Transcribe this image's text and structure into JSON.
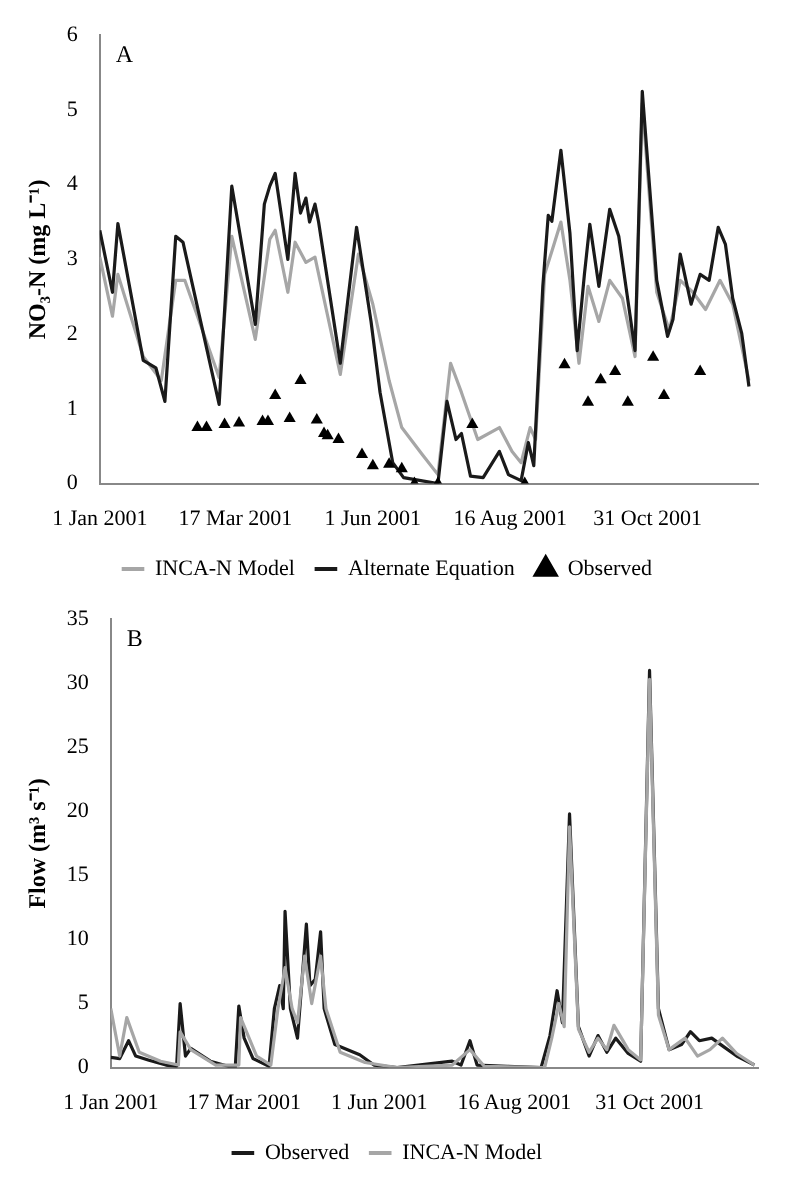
{
  "chart_data": [
    {
      "type": "line",
      "annotations": [
        "A"
      ],
      "ylabel": "NO₃-N (mg L⁻¹)",
      "xlim": [
        "2001-01-01",
        "2001-12-31"
      ],
      "xticks": [
        {
          "value": "2001-01-01",
          "label": "1 Jan 2001"
        },
        {
          "value": "2001-03-17",
          "label": "17 Mar 2001"
        },
        {
          "value": "2001-06-01",
          "label": "1 Jun 2001"
        },
        {
          "value": "2001-08-16",
          "label": "16 Aug 2001"
        },
        {
          "value": "2001-10-31",
          "label": "31 Oct 2001"
        }
      ],
      "ylim": [
        0,
        6
      ],
      "yticks": [
        0,
        1,
        2,
        3,
        4,
        5,
        6
      ],
      "grid": false,
      "legend": "bottom",
      "series": [
        {
          "name": "INCA-N Model",
          "color": "#a6a6a6",
          "marker": "none",
          "x": [
            "2001-01-01",
            "2001-01-08",
            "2001-01-11",
            "2001-01-25",
            "2001-02-04",
            "2001-02-12",
            "2001-02-17",
            "2001-03-08",
            "2001-03-15",
            "2001-03-28",
            "2001-04-05",
            "2001-04-08",
            "2001-04-15",
            "2001-04-19",
            "2001-04-25",
            "2001-04-30",
            "2001-05-14",
            "2001-05-24",
            "2001-06-01",
            "2001-06-10",
            "2001-06-17",
            "2001-06-28",
            "2001-07-07",
            "2001-07-14",
            "2001-07-20",
            "2001-07-29",
            "2001-08-10",
            "2001-08-17",
            "2001-08-22",
            "2001-08-27",
            "2001-08-30",
            "2001-09-04",
            "2001-09-08",
            "2001-09-13",
            "2001-09-18",
            "2001-09-23",
            "2001-09-28",
            "2001-10-04",
            "2001-10-10",
            "2001-10-17",
            "2001-10-24",
            "2001-10-28",
            "2001-11-05",
            "2001-11-12",
            "2001-11-18",
            "2001-11-25",
            "2001-12-02",
            "2001-12-10",
            "2001-12-17",
            "2001-12-26"
          ],
          "values": [
            3.03,
            2.24,
            2.8,
            1.7,
            1.38,
            2.72,
            2.72,
            1.42,
            3.31,
            1.93,
            3.27,
            3.39,
            2.56,
            3.23,
            2.96,
            3.03,
            1.46,
            3.07,
            2.4,
            1.38,
            0.75,
            0.4,
            0.12,
            1.61,
            1.22,
            0.59,
            0.75,
            0.43,
            0.28,
            0.75,
            0.59,
            2.8,
            3.11,
            3.5,
            2.72,
            1.61,
            2.64,
            2.17,
            2.72,
            2.48,
            1.7,
            5.09,
            2.56,
            2.05,
            2.72,
            2.56,
            2.33,
            2.72,
            2.4,
            1.38
          ]
        },
        {
          "name": "Alternate Equation",
          "color": "#1a1a1a",
          "marker": "none",
          "x": [
            "2001-01-01",
            "2001-01-08",
            "2001-01-11",
            "2001-01-25",
            "2001-02-01",
            "2001-02-06",
            "2001-02-12",
            "2001-02-16",
            "2001-03-08",
            "2001-03-15",
            "2001-03-28",
            "2001-04-02",
            "2001-04-05",
            "2001-04-08",
            "2001-04-15",
            "2001-04-19",
            "2001-04-22",
            "2001-04-25",
            "2001-04-27",
            "2001-04-30",
            "2001-05-02",
            "2001-05-14",
            "2001-05-23",
            "2001-05-31",
            "2001-06-05",
            "2001-06-12",
            "2001-06-18",
            "2001-07-07",
            "2001-07-12",
            "2001-07-17",
            "2001-07-20",
            "2001-07-25",
            "2001-08-01",
            "2001-08-10",
            "2001-08-15",
            "2001-08-22",
            "2001-08-26",
            "2001-08-29",
            "2001-09-03",
            "2001-09-06",
            "2001-09-08",
            "2001-09-13",
            "2001-09-18",
            "2001-09-22",
            "2001-09-26",
            "2001-09-29",
            "2001-10-04",
            "2001-10-10",
            "2001-10-15",
            "2001-10-24",
            "2001-10-28",
            "2001-11-05",
            "2001-11-11",
            "2001-11-14",
            "2001-11-18",
            "2001-11-24",
            "2001-11-29",
            "2001-12-04",
            "2001-12-09",
            "2001-12-13",
            "2001-12-17",
            "2001-12-22",
            "2001-12-26"
          ],
          "values": [
            3.39,
            2.56,
            3.48,
            1.65,
            1.55,
            1.1,
            3.31,
            3.23,
            1.06,
            3.98,
            2.13,
            3.74,
            3.98,
            4.15,
            3.0,
            4.15,
            3.62,
            3.82,
            3.5,
            3.74,
            3.5,
            1.61,
            3.43,
            2.17,
            1.22,
            0.28,
            0.08,
            0,
            1.1,
            0.59,
            0.67,
            0.1,
            0.08,
            0.43,
            0.12,
            0.04,
            0.55,
            0.24,
            2.64,
            3.59,
            3.51,
            4.46,
            3.35,
            1.78,
            2.8,
            3.47,
            2.64,
            3.67,
            3.31,
            1.78,
            5.25,
            2.72,
            1.97,
            2.2,
            3.07,
            2.4,
            2.8,
            2.72,
            3.43,
            3.2,
            2.48,
            2.01,
            1.3
          ]
        },
        {
          "name": "Observed",
          "type": "scatter",
          "color": "#000000",
          "marker": "triangle",
          "x": [
            "2001-02-24",
            "2001-03-01",
            "2001-03-11",
            "2001-03-19",
            "2001-04-01",
            "2001-04-04",
            "2001-04-08",
            "2001-04-16",
            "2001-04-22",
            "2001-05-01",
            "2001-05-05",
            "2001-05-07",
            "2001-05-13",
            "2001-05-26",
            "2001-06-01",
            "2001-06-10",
            "2001-06-17",
            "2001-06-24",
            "2001-07-07",
            "2001-07-26",
            "2001-08-24",
            "2001-09-15",
            "2001-09-28",
            "2001-10-05",
            "2001-10-13",
            "2001-10-20",
            "2001-11-03",
            "2001-11-09",
            "2001-11-29"
          ],
          "values": [
            0.75,
            0.75,
            0.79,
            0.81,
            0.83,
            0.83,
            1.18,
            0.87,
            1.38,
            0.85,
            0.67,
            0.64,
            0.59,
            0.39,
            0.24,
            0.26,
            0.2,
            0,
            0,
            0.79,
            0,
            1.59,
            1.09,
            1.39,
            1.5,
            1.09,
            1.69,
            1.18,
            1.5
          ]
        }
      ]
    },
    {
      "type": "line",
      "annotations": [
        "B"
      ],
      "ylabel": "Flow (m³ s⁻¹)",
      "xlim": [
        "2001-01-01",
        "2001-12-31"
      ],
      "xticks": [
        {
          "value": "2001-01-01",
          "label": "1 Jan 2001"
        },
        {
          "value": "2001-03-17",
          "label": "17 Mar 2001"
        },
        {
          "value": "2001-06-01",
          "label": "1 Jun 2001"
        },
        {
          "value": "2001-08-16",
          "label": "16 Aug 2001"
        },
        {
          "value": "2001-10-31",
          "label": "31 Oct 2001"
        }
      ],
      "ylim": [
        0,
        35
      ],
      "yticks": [
        0,
        5,
        10,
        15,
        20,
        25,
        30,
        35
      ],
      "grid": false,
      "legend": "bottom",
      "series": [
        {
          "name": "Observed",
          "color": "#1a1a1a",
          "marker": "none",
          "x": [
            "2001-01-01",
            "2001-01-06",
            "2001-01-11",
            "2001-01-15",
            "2001-01-22",
            "2001-02-01",
            "2001-02-07",
            "2001-02-09",
            "2001-02-12",
            "2001-02-15",
            "2001-02-26",
            "2001-03-08",
            "2001-03-12",
            "2001-03-14",
            "2001-03-17",
            "2001-03-22",
            "2001-03-31",
            "2001-04-03",
            "2001-04-06",
            "2001-04-08",
            "2001-04-09",
            "2001-04-12",
            "2001-04-16",
            "2001-04-21",
            "2001-04-23",
            "2001-04-26",
            "2001-04-29",
            "2001-05-01",
            "2001-05-07",
            "2001-05-21",
            "2001-05-29",
            "2001-06-11",
            "2001-07-12",
            "2001-07-17",
            "2001-07-22",
            "2001-07-26",
            "2001-08-12",
            "2001-08-31",
            "2001-09-05",
            "2001-09-09",
            "2001-09-12",
            "2001-09-16",
            "2001-09-21",
            "2001-09-27",
            "2001-10-02",
            "2001-10-07",
            "2001-10-12",
            "2001-10-19",
            "2001-10-26",
            "2001-10-31",
            "2001-11-05",
            "2001-11-11",
            "2001-11-18",
            "2001-11-23",
            "2001-11-28",
            "2001-12-05",
            "2001-12-12",
            "2001-12-19",
            "2001-12-29"
          ],
          "values": [
            0.8,
            0.7,
            2.1,
            0.9,
            0.6,
            0.2,
            0.1,
            5.0,
            0.9,
            1.5,
            0.5,
            0.1,
            0,
            4.8,
            2.3,
            0.7,
            0.1,
            4.6,
            6.4,
            4.6,
            12.2,
            4.6,
            2.3,
            11.2,
            6.4,
            6.9,
            10.6,
            4.6,
            1.8,
            1.0,
            0.2,
            0,
            0.5,
            0.2,
            2.1,
            0.2,
            0.1,
            0,
            2.5,
            6.0,
            3.5,
            19.8,
            3.2,
            0.9,
            2.5,
            1.2,
            2.3,
            1.1,
            0.5,
            31.0,
            4.6,
            1.4,
            1.8,
            2.8,
            2.1,
            2.3,
            1.6,
            0.9,
            0.2
          ]
        },
        {
          "name": "INCA-N Model",
          "color": "#a6a6a6",
          "marker": "none",
          "x": [
            "2001-01-01",
            "2001-01-06",
            "2001-01-10",
            "2001-01-17",
            "2001-01-29",
            "2001-02-08",
            "2001-02-09",
            "2001-02-15",
            "2001-03-01",
            "2001-03-14",
            "2001-03-15",
            "2001-03-24",
            "2001-04-01",
            "2001-04-05",
            "2001-04-09",
            "2001-04-13",
            "2001-04-16",
            "2001-04-20",
            "2001-04-24",
            "2001-04-29",
            "2001-05-02",
            "2001-05-10",
            "2001-05-24",
            "2001-06-11",
            "2001-07-12",
            "2001-07-22",
            "2001-07-30",
            "2001-09-02",
            "2001-09-06",
            "2001-09-10",
            "2001-09-13",
            "2001-09-16",
            "2001-09-21",
            "2001-09-27",
            "2001-10-02",
            "2001-10-07",
            "2001-10-11",
            "2001-10-19",
            "2001-10-26",
            "2001-10-31",
            "2001-11-05",
            "2001-11-11",
            "2001-11-20",
            "2001-11-27",
            "2001-12-04",
            "2001-12-11",
            "2001-12-19",
            "2001-12-29"
          ],
          "values": [
            4.6,
            0.9,
            3.9,
            1.2,
            0.5,
            0.2,
            2.8,
            1.4,
            0.2,
            0.2,
            3.9,
            0.9,
            0.2,
            4.6,
            7.8,
            4.6,
            3.5,
            8.7,
            5.0,
            8.7,
            4.6,
            1.2,
            0.4,
            0,
            0.2,
            1.4,
            0.1,
            0,
            2.3,
            5.0,
            3.2,
            18.8,
            3.0,
            1.2,
            2.3,
            1.4,
            3.3,
            1.4,
            0.6,
            30.3,
            4.1,
            1.4,
            2.3,
            0.9,
            1.4,
            2.3,
            1.1,
            0.2
          ]
        }
      ]
    }
  ]
}
